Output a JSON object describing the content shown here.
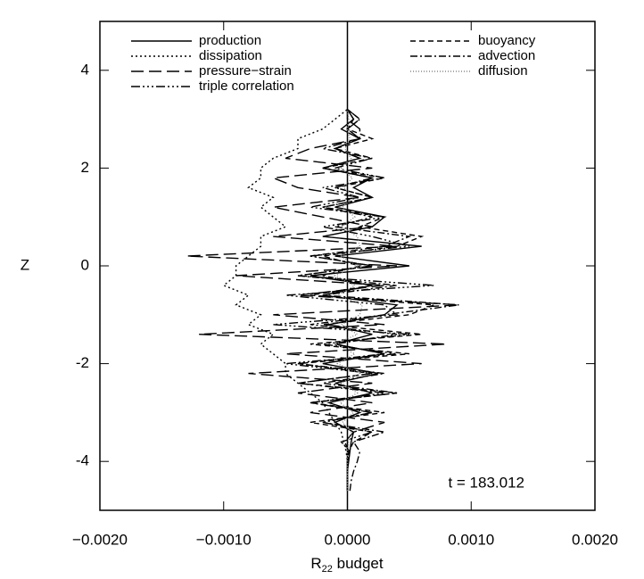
{
  "chart_data": {
    "type": "line",
    "xlabel_parts": [
      "R",
      "22",
      " budget"
    ],
    "ylabel": "Z",
    "annotation": "t = 183.012",
    "xlim": [
      -0.002,
      0.002
    ],
    "xticks": [
      {
        "value": -0.002,
        "label": "−0.0020"
      },
      {
        "value": -0.001,
        "label": "−0.0010"
      },
      {
        "value": 0,
        "label": "0.0000"
      },
      {
        "value": 0.001,
        "label": "0.0010"
      },
      {
        "value": 0.002,
        "label": "0.0020"
      }
    ],
    "ylim": [
      -5,
      5
    ],
    "yticks": [
      -4,
      -2,
      0,
      2,
      4
    ],
    "legend": "upper",
    "z": [
      -4.6,
      -4.4,
      -4.2,
      -4.0,
      -3.8,
      -3.6,
      -3.4,
      -3.2,
      -3.0,
      -2.8,
      -2.6,
      -2.4,
      -2.2,
      -2.0,
      -1.8,
      -1.6,
      -1.4,
      -1.2,
      -1.0,
      -0.8,
      -0.6,
      -0.4,
      -0.2,
      0,
      0.2,
      0.4,
      0.6,
      0.8,
      1.0,
      1.2,
      1.4,
      1.6,
      1.8,
      2.0,
      2.2,
      2.4,
      2.6,
      2.8,
      3.0,
      3.2
    ],
    "series": [
      {
        "name": "production",
        "color": "#000000",
        "dash": "none",
        "values": [
          0,
          0,
          0,
          1e-05,
          2e-05,
          3e-05,
          5e-05,
          -0.0001,
          0.0001,
          -0.00015,
          0.0002,
          -0.0001,
          0.00025,
          -0.0002,
          0.0003,
          -0.0001,
          0.0002,
          -0.00015,
          0.0003,
          0.0004,
          -0.0002,
          0.0002,
          -0.0003,
          0.0005,
          -0.0001,
          0.0006,
          -0.0002,
          0.0002,
          0.0003,
          -0.0001,
          0.0002,
          5e-05,
          0.0002,
          -0.0002,
          0.0001,
          -0.0001,
          0.0001,
          -5e-05,
          5e-05,
          0
        ]
      },
      {
        "name": "dissipation",
        "color": "#000000",
        "dash": "2,3",
        "values": [
          0,
          0,
          0,
          0,
          -1e-05,
          -3e-05,
          -5e-05,
          -0.0001,
          -0.00015,
          -0.0002,
          -0.0003,
          -0.0004,
          -0.0005,
          -0.0005,
          -0.0006,
          -0.0007,
          -0.0006,
          -0.0008,
          -0.0007,
          -0.0009,
          -0.0008,
          -0.001,
          -0.0009,
          -0.0009,
          -0.0008,
          -0.0007,
          -0.0007,
          -0.0005,
          -0.0006,
          -0.0007,
          -0.0006,
          -0.0008,
          -0.0007,
          -0.0007,
          -0.0006,
          -0.0004,
          -0.0004,
          -0.0002,
          -0.0001,
          0
        ]
      },
      {
        "name": "pressure−strain",
        "color": "#000000",
        "dash": "14,6",
        "values": [
          0,
          0,
          0,
          0,
          1e-05,
          -2e-05,
          5e-05,
          0.0003,
          -0.0003,
          0.0002,
          -0.0004,
          0.0002,
          -0.0008,
          0.0006,
          -0.0005,
          0.0008,
          -0.0012,
          0.0003,
          -0.0006,
          0.0009,
          -0.0004,
          0.0003,
          -0.0009,
          0.0004,
          -0.0013,
          0.0004,
          -0.0006,
          0.0002,
          -0.0002,
          -0.0006,
          0.0001,
          -0.0004,
          -0.0006,
          0.0002,
          -0.0005,
          -0.0003,
          0.0001,
          0.0001,
          0,
          0
        ]
      },
      {
        "name": "triple correlation",
        "color": "#000000",
        "dash": "10,3,2,3,2,3,2,3",
        "values": [
          0,
          0,
          0,
          0,
          2e-05,
          -5e-05,
          0.0002,
          -0.0002,
          0.0002,
          -0.0003,
          0.0003,
          -0.0004,
          0.0002,
          -0.0005,
          0.0004,
          -0.0002,
          0.0005,
          -0.0006,
          0.0004,
          0.0003,
          -0.0005,
          0.0007,
          -0.0004,
          0.0002,
          -0.0003,
          0.0005,
          0.0002,
          -0.0002,
          0.0003,
          -0.0003,
          0.0001,
          -0.0002,
          0.0003,
          -0.0001,
          0.0002,
          -0.0002,
          0.0001,
          0,
          5e-05,
          0
        ]
      },
      {
        "name": "buoyancy",
        "color": "#000000",
        "dash": "6,4",
        "values": [
          0,
          0,
          0,
          0,
          1e-05,
          5e-05,
          0.0002,
          -0.0003,
          0.0003,
          -0.0003,
          0.0004,
          -0.0004,
          0.0002,
          -0.0004,
          0.0005,
          -0.0003,
          0.0006,
          -0.0002,
          0.0005,
          0.0007,
          -0.0003,
          0.0002,
          -0.0002,
          0.0001,
          -0.0002,
          0.0004,
          0.0006,
          0.0001,
          0.0003,
          -0.0002,
          0.0002,
          -0.0001,
          0.0003,
          -0.0002,
          0.0002,
          -0.0001,
          0.0002,
          0,
          0.0001,
          0
        ]
      },
      {
        "name": "advection",
        "color": "#000000",
        "dash": "8,3,2,3",
        "values": [
          2e-05,
          3e-05,
          5e-05,
          8e-05,
          0.0001,
          5e-05,
          0.0003,
          -0.0002,
          0.0002,
          -0.0003,
          0.0004,
          -0.0002,
          0.0003,
          -0.0004,
          0.0003,
          -0.0001,
          0.0004,
          -0.0003,
          0.0003,
          0.0009,
          -0.0002,
          0.0004,
          -0.0004,
          0.0002,
          -0.0003,
          0.0003,
          0.0005,
          -0.0001,
          0.0002,
          -0.0002,
          0.0002,
          -0.0001,
          0.0002,
          -0.0002,
          0.0001,
          -0.0001,
          0.0001,
          0,
          0.0001,
          0
        ]
      },
      {
        "name": "diffusion",
        "color": "#888888",
        "dash": "1,2",
        "values": [
          0,
          0,
          0,
          0,
          0,
          1e-05,
          3e-05,
          -4e-05,
          5e-05,
          -6e-05,
          8e-05,
          -5e-05,
          0.0001,
          -8e-05,
          6e-05,
          -0.0001,
          8e-05,
          -5e-05,
          0.0001,
          0.00012,
          -8e-05,
          6e-05,
          -0.0001,
          8e-05,
          -6e-05,
          0.0001,
          8e-05,
          -5e-05,
          6e-05,
          -4e-05,
          5e-05,
          -3e-05,
          4e-05,
          -5e-05,
          3e-05,
          -2e-05,
          2e-05,
          0,
          1e-05,
          0
        ]
      }
    ]
  }
}
